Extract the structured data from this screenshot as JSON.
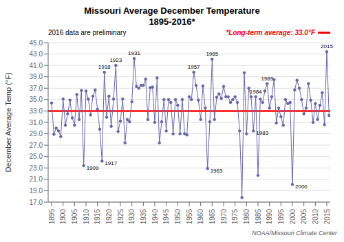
{
  "chart_data": {
    "type": "line",
    "title": "Missouri Average December Temperature",
    "subtitle": "1895-2016*",
    "y_label": "December Average Temp (°F)",
    "notes": [
      "2016 data are preliminary",
      "NOAA/Missouri Climate Center"
    ],
    "x": [
      1895,
      1896,
      1897,
      1898,
      1899,
      1900,
      1901,
      1902,
      1903,
      1904,
      1905,
      1906,
      1907,
      1908,
      1909,
      1910,
      1911,
      1912,
      1913,
      1914,
      1915,
      1916,
      1917,
      1918,
      1919,
      1920,
      1921,
      1922,
      1923,
      1924,
      1925,
      1926,
      1927,
      1928,
      1929,
      1930,
      1931,
      1932,
      1933,
      1934,
      1935,
      1936,
      1937,
      1938,
      1939,
      1940,
      1941,
      1942,
      1943,
      1944,
      1945,
      1946,
      1947,
      1948,
      1949,
      1950,
      1951,
      1952,
      1953,
      1954,
      1955,
      1956,
      1957,
      1958,
      1959,
      1960,
      1961,
      1962,
      1963,
      1964,
      1965,
      1966,
      1967,
      1968,
      1969,
      1970,
      1971,
      1972,
      1973,
      1974,
      1975,
      1976,
      1977,
      1978,
      1979,
      1980,
      1981,
      1982,
      1983,
      1984,
      1985,
      1986,
      1987,
      1988,
      1989,
      1990,
      1991,
      1992,
      1993,
      1994,
      1995,
      1996,
      1997,
      1998,
      1999,
      2000,
      2001,
      2002,
      2003,
      2004,
      2005,
      2006,
      2007,
      2008,
      2009,
      2010,
      2011,
      2012,
      2013,
      2014,
      2015,
      2016
    ],
    "values": [
      34.4,
      28.9,
      30.0,
      29.5,
      28.5,
      35.1,
      30.5,
      32.5,
      34.9,
      31.8,
      30.5,
      35.9,
      31.5,
      36.6,
      23.4,
      36.5,
      35.1,
      32.3,
      35.6,
      36.7,
      33.3,
      29.8,
      24.2,
      39.8,
      31.9,
      35.6,
      30.3,
      35.1,
      41.0,
      29.4,
      31.2,
      35.1,
      27.4,
      31.5,
      31.1,
      34.6,
      42.2,
      37.3,
      37.0,
      37.5,
      37.5,
      38.6,
      31.5,
      37.1,
      37.2,
      31.0,
      38.8,
      27.4,
      31.1,
      35.0,
      29.5,
      35.0,
      34.5,
      29.0,
      35.0,
      34.0,
      29.0,
      35.0,
      29.0,
      28.8,
      35.5,
      35.0,
      39.8,
      37.5,
      34.9,
      31.5,
      37.4,
      33.5,
      22.9,
      31.1,
      42.1,
      31.5,
      35.4,
      36.0,
      35.2,
      37.3,
      35.5,
      35.5,
      34.5,
      35.0,
      35.5,
      34.5,
      29.5,
      17.8,
      39.7,
      29.0,
      37.0,
      35.5,
      29.5,
      35.5,
      21.7,
      35.1,
      34.5,
      36.5,
      37.8,
      33.5,
      35.5,
      38.5,
      30.9,
      33.5,
      32.0,
      30.5,
      35.0,
      34.3,
      34.5,
      20.1,
      36.7,
      38.4,
      37.0,
      35.0,
      32.5,
      33.5,
      37.8,
      34.9,
      31.0,
      34.3,
      31.5,
      34.0,
      36.2,
      30.6,
      43.4,
      32.2
    ],
    "color": "#6666AA",
    "marker": "circle",
    "reference_line": {
      "value": 33.0,
      "label": "*Long-term average: 33.0°F",
      "color": "red"
    },
    "annotations": [
      {
        "x": 1909,
        "text": "1909"
      },
      {
        "x": 1917,
        "text": "1917"
      },
      {
        "x": 1918,
        "text": "1918"
      },
      {
        "x": 1923,
        "text": "1923"
      },
      {
        "x": 1931,
        "text": "1931"
      },
      {
        "x": 1957,
        "text": "1957"
      },
      {
        "x": 1963,
        "text": "1963"
      },
      {
        "x": 1965,
        "text": "1965"
      },
      {
        "x": 1983,
        "text": "1983"
      },
      {
        "x": 1984,
        "text": "1984"
      },
      {
        "x": 1989,
        "text": "1989"
      },
      {
        "x": 2000,
        "text": "2000"
      },
      {
        "x": 2015,
        "text": "2015"
      }
    ],
    "xlim": [
      1893.5,
      2016.5
    ],
    "xticks": [
      1895,
      1900,
      1905,
      1910,
      1915,
      1920,
      1925,
      1930,
      1935,
      1940,
      1945,
      1950,
      1955,
      1960,
      1965,
      1970,
      1975,
      1980,
      1985,
      1990,
      1995,
      2000,
      2005,
      2010,
      2015
    ],
    "ylim": [
      17.0,
      45.0
    ],
    "yticks": [
      {
        "value": 17.0,
        "label": "17.0"
      },
      {
        "value": 19.0,
        "label": "19.0"
      },
      {
        "value": 21.0,
        "label": "21.0"
      },
      {
        "value": 23.0,
        "label": "23.0"
      },
      {
        "value": 25.0,
        "label": "25.0"
      },
      {
        "value": 27.0,
        "label": "27.0"
      },
      {
        "value": 29.0,
        "label": "29.0"
      },
      {
        "value": 31.0,
        "label": "31.0"
      },
      {
        "value": 33.0,
        "label": "33.0"
      },
      {
        "value": 35.0,
        "label": "35.0"
      },
      {
        "value": 37.0,
        "label": "37.0"
      },
      {
        "value": 39.0,
        "label": "39.0"
      },
      {
        "value": 41.0,
        "label": "41.0"
      },
      {
        "value": 43.0,
        "label": "43.0"
      },
      {
        "value": 45.0,
        "label": "45.0"
      }
    ],
    "grid": true
  }
}
